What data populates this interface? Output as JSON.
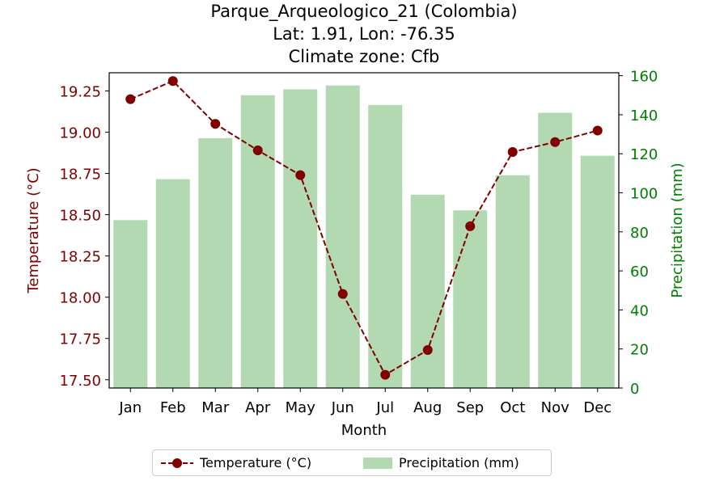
{
  "header": {
    "title_line1": "Parque_Arqueologico_21 (Colombia)",
    "title_line2": "Lat: 1.91, Lon: -76.35",
    "title_line3": "Climate zone: Cfb"
  },
  "legend": {
    "temp_label": "Temperature (°C)",
    "precip_label": "Precipitation (mm)"
  },
  "colors": {
    "temperature": "#800000",
    "precipitation": "#b2d9b2",
    "precip_axis": "#008000"
  },
  "chart_data": {
    "type": "bar",
    "title": "Parque_Arqueologico_21 (Colombia)\nLat: 1.91, Lon: -76.35\nClimate zone: Cfb",
    "xlabel": "Month",
    "ylabel_left": "Temperature (°C)",
    "ylabel_right": "Precipitation (mm)",
    "categories": [
      "Jan",
      "Feb",
      "Mar",
      "Apr",
      "May",
      "Jun",
      "Jul",
      "Aug",
      "Sep",
      "Oct",
      "Nov",
      "Dec"
    ],
    "series": [
      {
        "name": "Temperature (°C)",
        "type": "line",
        "axis": "left",
        "values": [
          19.2,
          19.31,
          19.05,
          18.89,
          18.74,
          18.02,
          17.53,
          17.68,
          18.43,
          18.88,
          18.94,
          19.01
        ]
      },
      {
        "name": "Precipitation (mm)",
        "type": "bar",
        "axis": "right",
        "values": [
          86,
          107,
          128,
          150,
          153,
          155,
          145,
          99,
          91,
          109,
          141,
          119
        ]
      }
    ],
    "ylim_left": [
      17.45,
      19.36
    ],
    "ylim_right": [
      0,
      161.5
    ],
    "yticks_left": [
      "17.50",
      "17.75",
      "18.00",
      "18.25",
      "18.50",
      "18.75",
      "19.00",
      "19.25"
    ],
    "yticks_right": [
      "0",
      "20",
      "40",
      "60",
      "80",
      "100",
      "120",
      "140",
      "160"
    ],
    "legend_position": "bottom-center",
    "grid": false
  }
}
